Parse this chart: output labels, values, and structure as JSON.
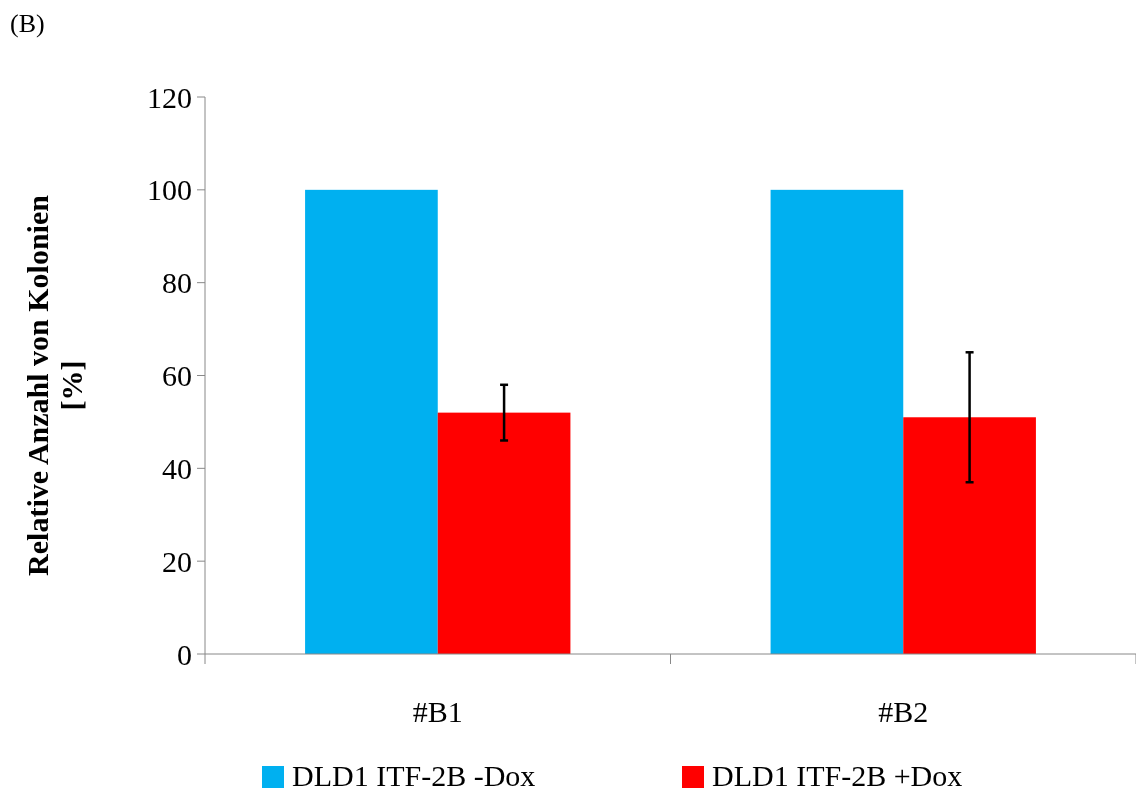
{
  "chart_data": {
    "type": "bar",
    "title": "(B)",
    "ylabel": "Relative Anzahl von Kolonien [%]",
    "categories": [
      "#B1",
      "#B2"
    ],
    "series": [
      {
        "name": "DLD1 ITF-2B -Dox",
        "color": "#00b0f0",
        "values": [
          100,
          100
        ]
      },
      {
        "name": "DLD1 ITF-2B +Dox",
        "color": "#ff0000",
        "values": [
          52,
          51
        ],
        "errors": [
          6,
          14
        ]
      }
    ],
    "ylim": [
      0,
      120
    ],
    "yticks": [
      0,
      20,
      40,
      60,
      80,
      100,
      120
    ],
    "grid": false,
    "legend": "bottom"
  }
}
